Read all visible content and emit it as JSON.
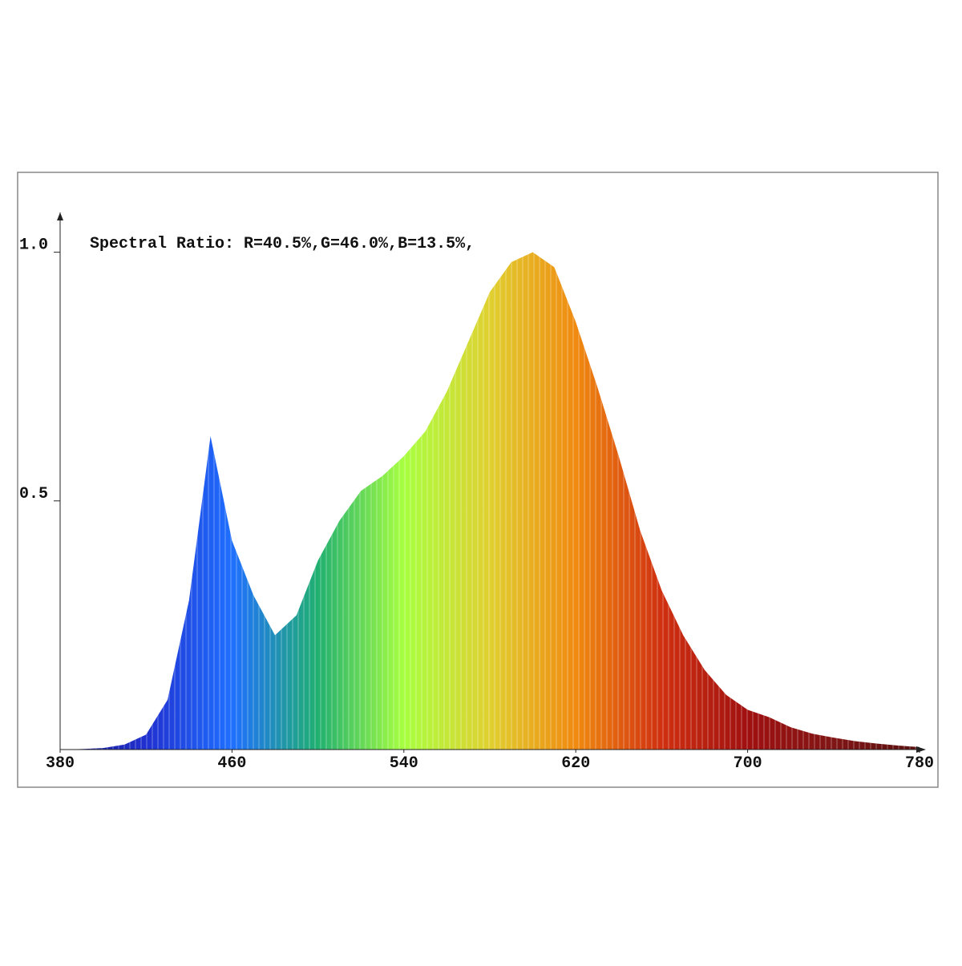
{
  "chart_data": {
    "type": "area",
    "title": "Spectral Ratio:  R=40.5%,G=46.0%,B=13.5%,",
    "x": [
      380,
      390,
      400,
      410,
      420,
      430,
      440,
      450,
      460,
      470,
      480,
      490,
      500,
      510,
      520,
      530,
      540,
      550,
      560,
      570,
      580,
      590,
      600,
      610,
      620,
      630,
      640,
      650,
      660,
      670,
      680,
      690,
      700,
      710,
      720,
      730,
      740,
      750,
      760,
      770,
      780
    ],
    "values": [
      0,
      0.001,
      0.003,
      0.01,
      0.03,
      0.1,
      0.3,
      0.63,
      0.42,
      0.31,
      0.23,
      0.27,
      0.38,
      0.46,
      0.52,
      0.55,
      0.59,
      0.64,
      0.72,
      0.82,
      0.92,
      0.98,
      1.0,
      0.97,
      0.86,
      0.73,
      0.59,
      0.44,
      0.32,
      0.23,
      0.16,
      0.11,
      0.08,
      0.065,
      0.045,
      0.032,
      0.024,
      0.017,
      0.012,
      0.008,
      0.005
    ],
    "colors": [
      "#1a1a8a",
      "#2030d0",
      "#1f6fff",
      "#20b070",
      "#a8ff40",
      "#e0d030",
      "#f08a10",
      "#d03010",
      "#a01010",
      "#801515",
      "#5a1010"
    ],
    "xlim": [
      380,
      780
    ],
    "ylim": [
      0,
      1.08
    ],
    "xticks": [
      380,
      460,
      540,
      620,
      700,
      780
    ],
    "yticks": [
      0.5,
      {
        "value": 1,
        "label": "1.0"
      }
    ]
  }
}
